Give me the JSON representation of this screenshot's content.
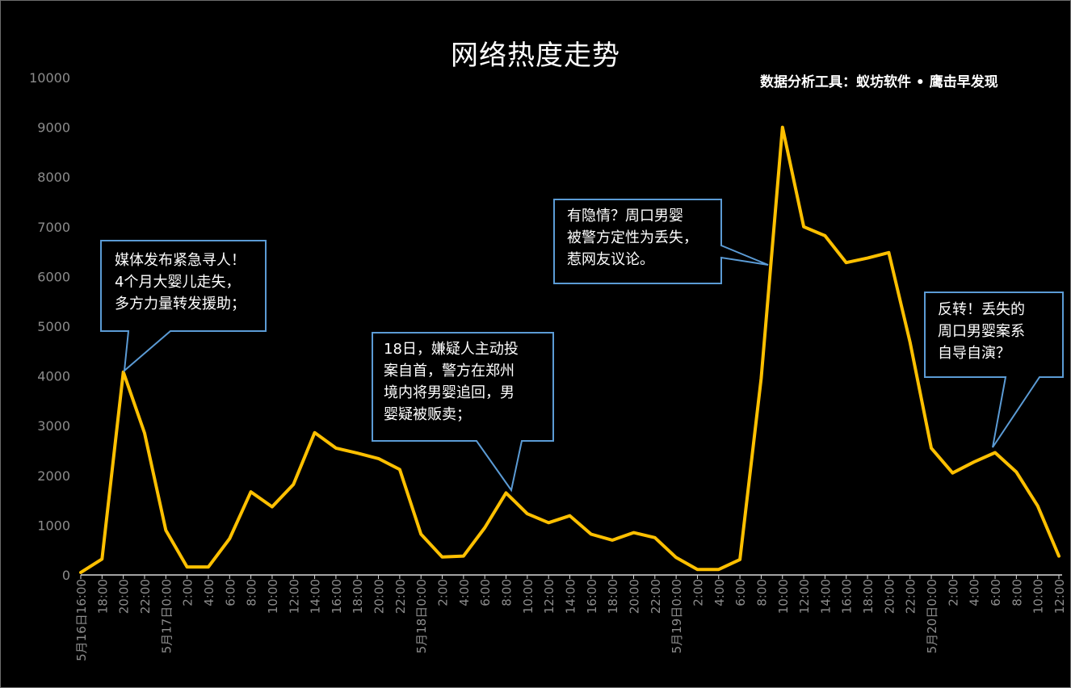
{
  "chart_data": {
    "type": "line",
    "title": "网络热度走势",
    "subtitle": "数据分析工具：蚁坊软件 • 鹰击早发现",
    "xlabel": "",
    "ylabel": "",
    "ylim": [
      0,
      10000
    ],
    "yticks": [
      0,
      1000,
      2000,
      3000,
      4000,
      5000,
      6000,
      7000,
      8000,
      9000,
      10000
    ],
    "grid": false,
    "legend": "none",
    "line_color": "#ffc000",
    "categories": [
      "5月16日16:00",
      "18:00",
      "20:00",
      "22:00",
      "5月17日0:00",
      "2:00",
      "4:00",
      "6:00",
      "8:00",
      "10:00",
      "12:00",
      "14:00",
      "16:00",
      "18:00",
      "20:00",
      "22:00",
      "5月18日0:00",
      "2:00",
      "4:00",
      "6:00",
      "8:00",
      "10:00",
      "12:00",
      "14:00",
      "16:00",
      "18:00",
      "20:00",
      "22:00",
      "5月19日0:00",
      "2:00",
      "4:00",
      "6:00",
      "8:00",
      "10:00",
      "12:00",
      "14:00",
      "16:00",
      "18:00",
      "20:00",
      "22:00",
      "5月20日0:00",
      "2:00",
      "4:00",
      "6:00",
      "8:00",
      "10:00",
      "12:00"
    ],
    "series": [
      {
        "values": [
          50,
          320,
          4080,
          2850,
          900,
          160,
          160,
          730,
          1670,
          1370,
          1820,
          2860,
          2550,
          2450,
          2340,
          2120,
          820,
          360,
          380,
          950,
          1650,
          1230,
          1050,
          1190,
          820,
          700,
          850,
          750,
          350,
          110,
          110,
          310,
          3950,
          9000,
          7000,
          6820,
          6280,
          6370,
          6480,
          4680,
          2550,
          2050,
          2270,
          2460,
          2070,
          1390,
          380
        ]
      }
    ],
    "annotations": [
      {
        "lines": [
          "媒体发布紧急寻人！",
          "4个月大婴儿走失，",
          "多方力量转发援助；"
        ],
        "target_index": 2
      },
      {
        "lines": [
          "18日，嫌疑人主动投",
          "案自首，警方在郑州",
          "境内将男婴追回，男",
          "婴疑被贩卖；"
        ],
        "target_index": 20
      },
      {
        "lines": [
          "有隐情？周口男婴",
          "被警方定性为丢失，",
          "惹网友议论。"
        ],
        "target_index": 32
      },
      {
        "lines": [
          "反转！丢失的",
          "周口男婴案系",
          "自导自演？"
        ],
        "target_index": 43
      }
    ]
  }
}
